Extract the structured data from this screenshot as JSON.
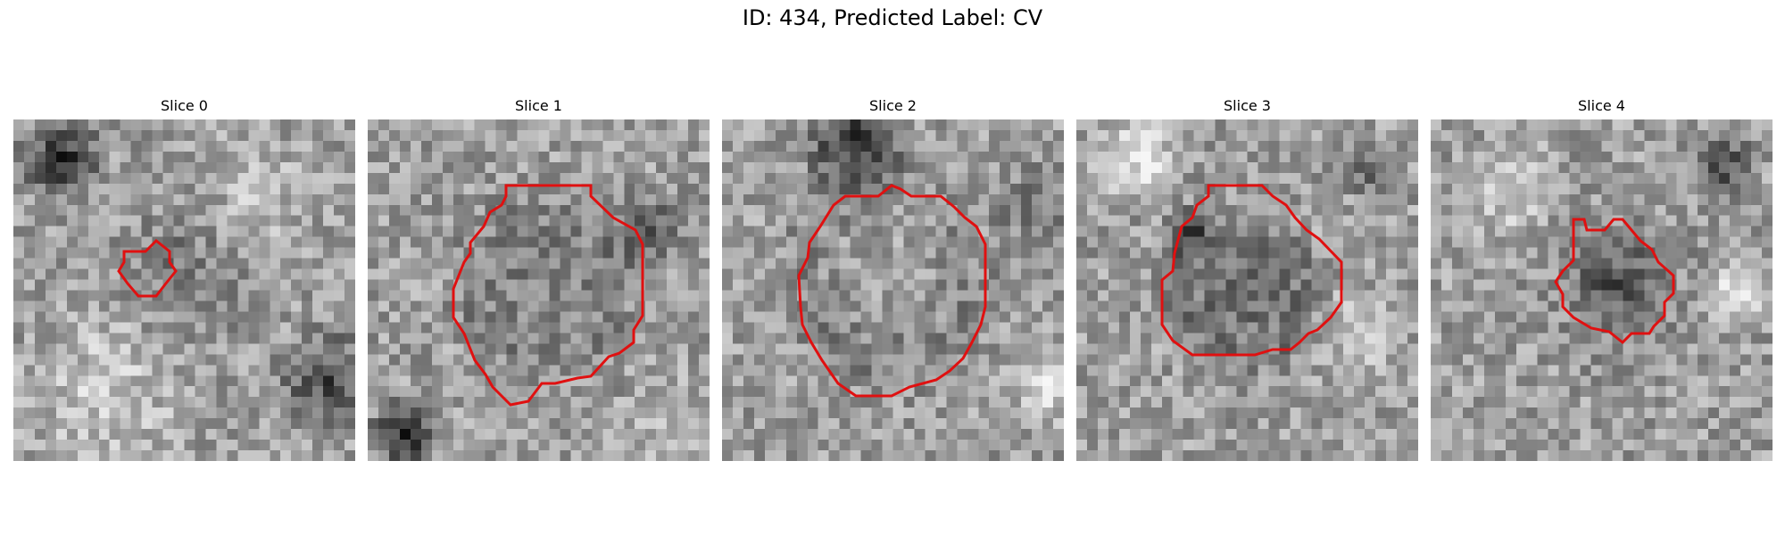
{
  "figure": {
    "title": "ID: 434, Predicted Label: CV"
  },
  "panels": [
    {
      "title": "Slice 0"
    },
    {
      "title": "Slice 1"
    },
    {
      "title": "Slice 2"
    },
    {
      "title": "Slice 3"
    },
    {
      "title": "Slice 4"
    }
  ],
  "colors": {
    "contour": "#e01010",
    "background": "#ffffff"
  }
}
